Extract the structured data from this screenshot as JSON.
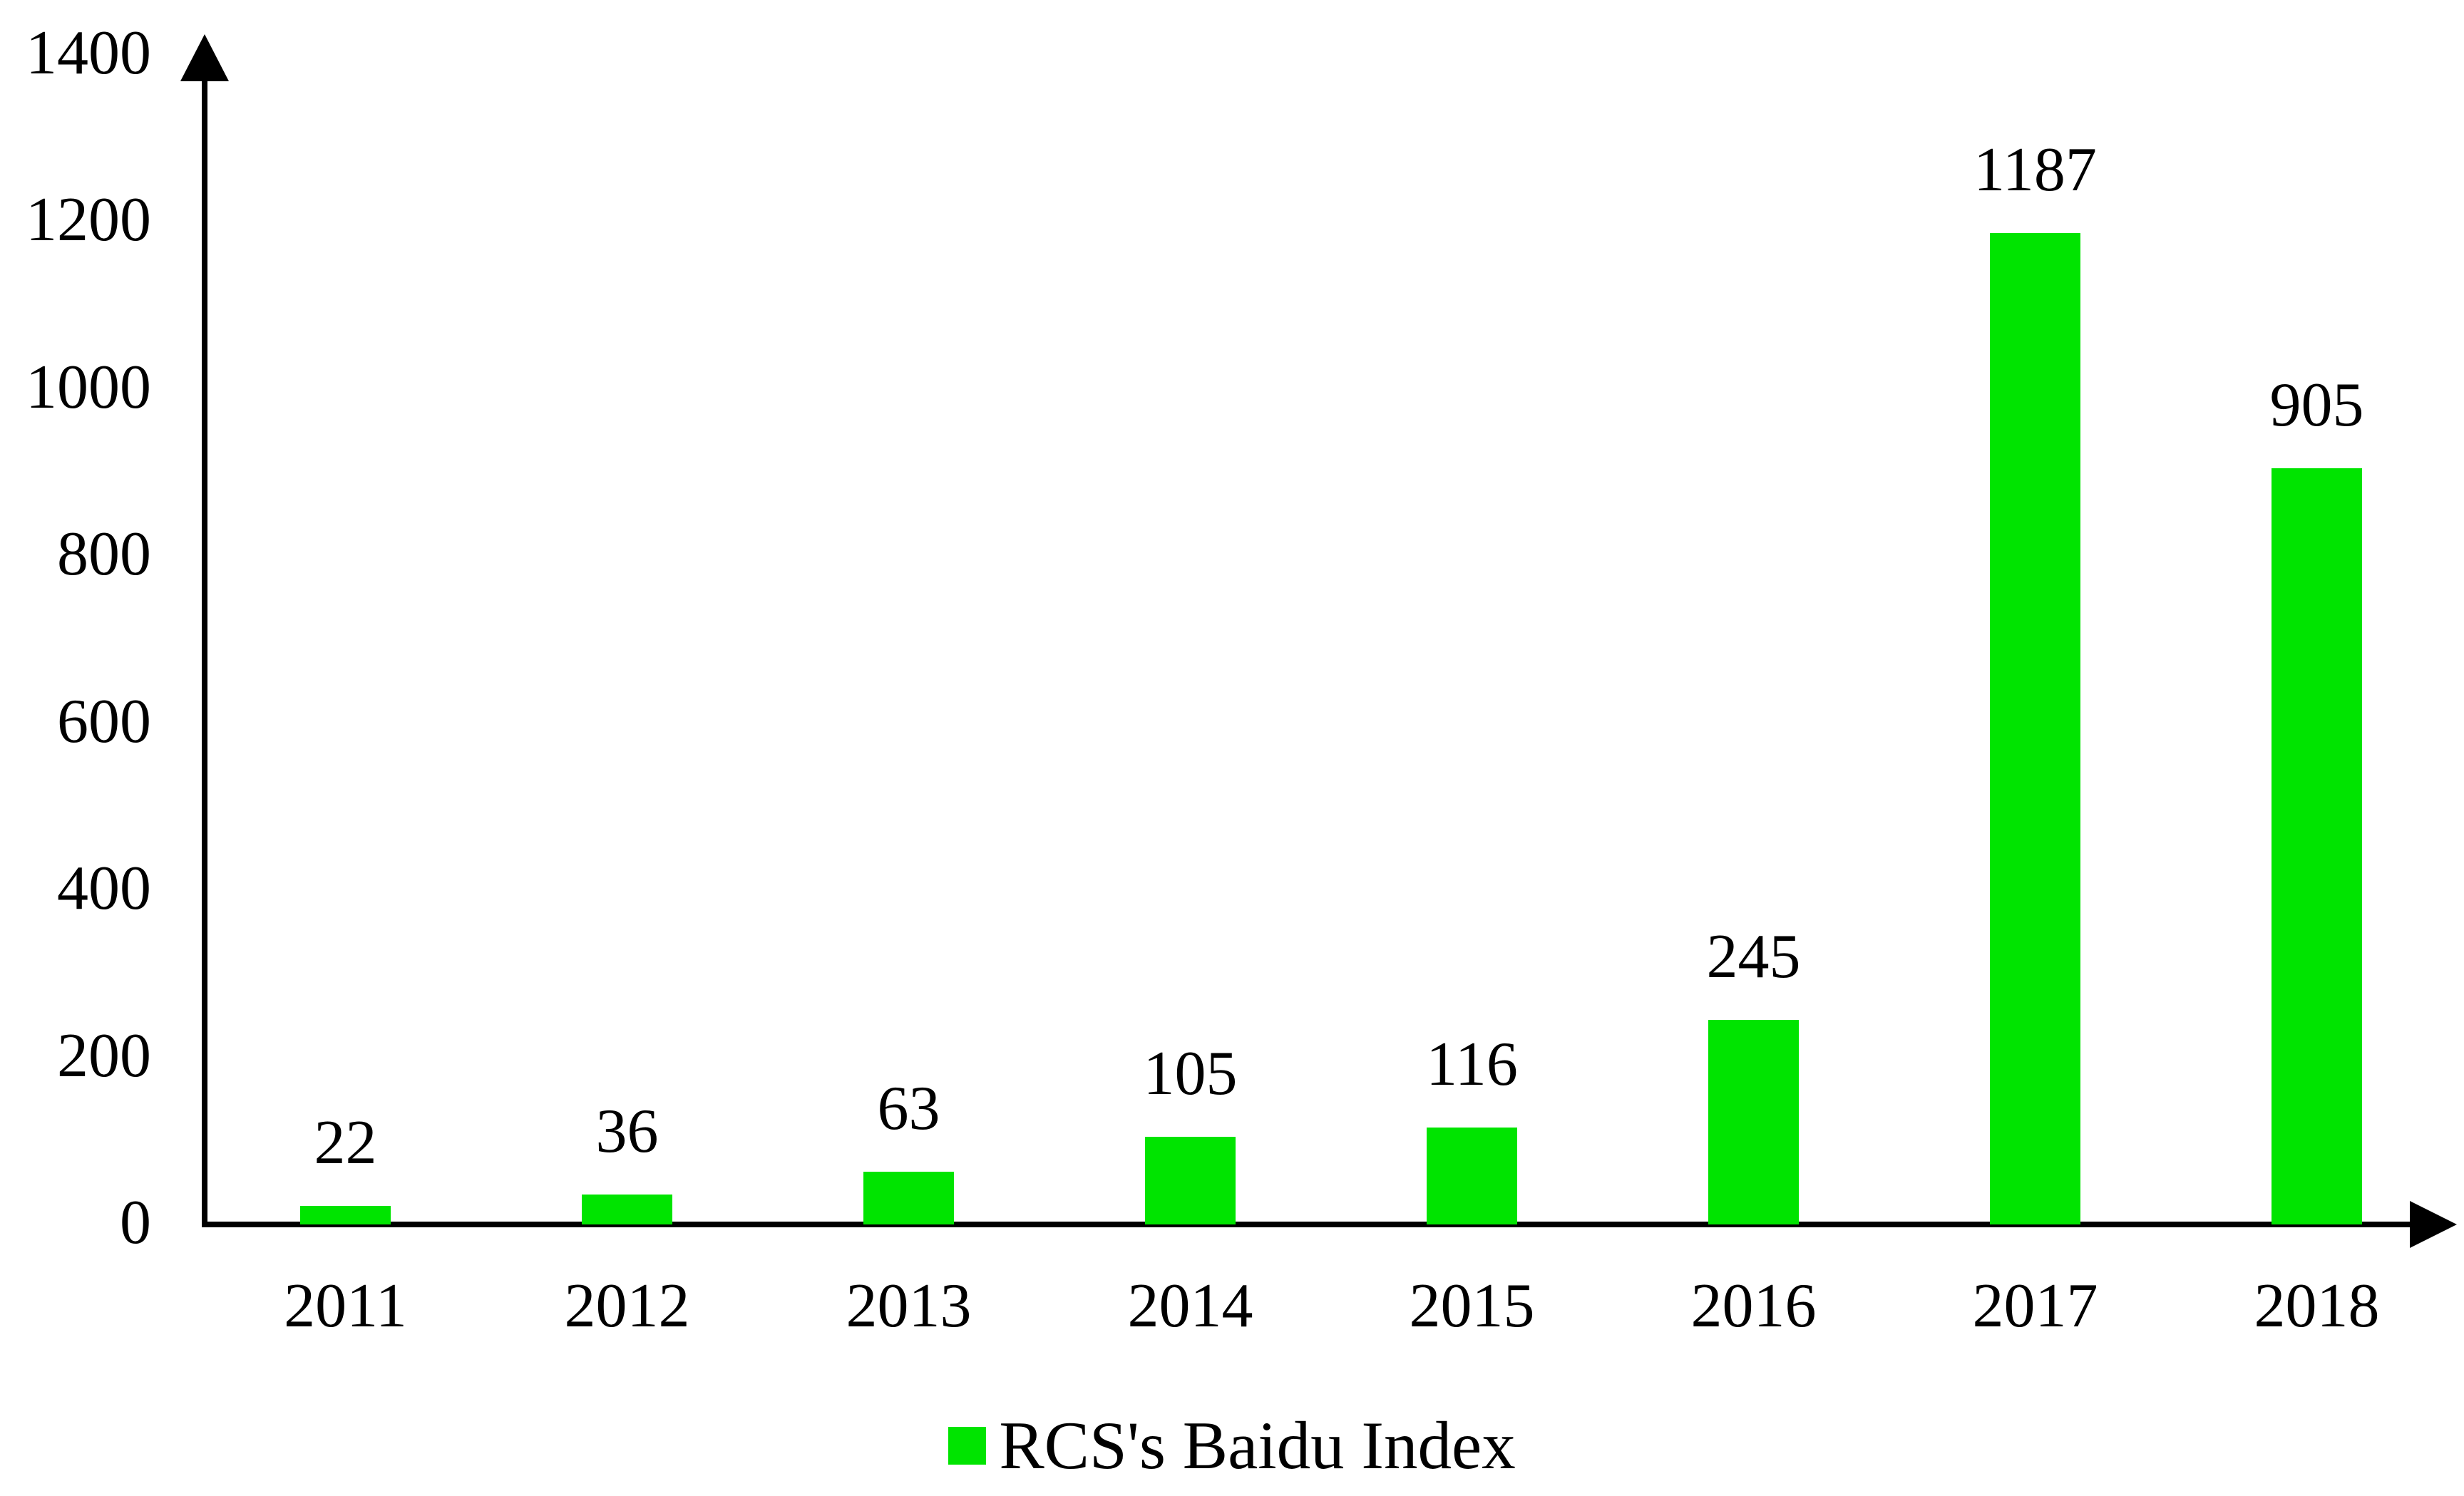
{
  "chart_data": {
    "type": "bar",
    "categories": [
      "2011",
      "2012",
      "2013",
      "2014",
      "2015",
      "2016",
      "2017",
      "2018"
    ],
    "values": [
      22,
      36,
      63,
      105,
      116,
      245,
      1187,
      905
    ],
    "title": "",
    "xlabel": "",
    "ylabel": "",
    "ylim": [
      0,
      1400
    ],
    "yticks": [
      0,
      200,
      400,
      600,
      800,
      1000,
      1200,
      1400
    ],
    "legend": "RCS's Baidu Index",
    "legend_position": "bottom",
    "grid": false,
    "value_labels": true,
    "bar_color": "#00E400",
    "axis_color": "#000000",
    "text_color": "#000000"
  }
}
